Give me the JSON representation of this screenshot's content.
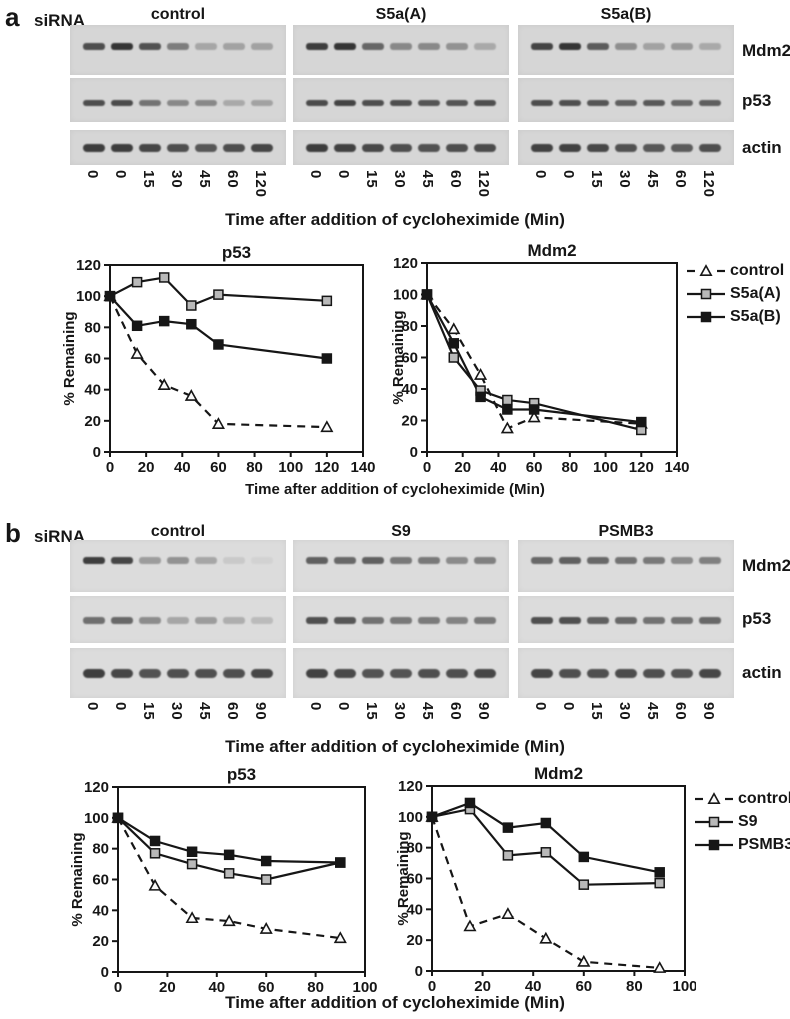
{
  "figure": {
    "background": "#ffffff",
    "text_color": "#161616",
    "blot_bg_a": "#d6d6d6",
    "blot_bg_b": "#dcdcdc",
    "gray_marker": "#b9b9b9"
  },
  "sections": {
    "a": {
      "panel_label": "a",
      "sirna_label": "siRNA",
      "group_headers": [
        "control",
        "S5a(A)",
        "S5a(B)"
      ],
      "row_labels": [
        "Mdm2",
        "p53",
        "actin"
      ],
      "time_labels": [
        "0",
        "0",
        "15",
        "30",
        "45",
        "60",
        "120"
      ],
      "blot_axis_title": "Time after addition of cycloheximide (Min)",
      "chart_xlabel": "Time after addition of cycloheximide (Min)",
      "band_intensities": [
        [
          [
            0.8,
            0.95,
            0.78,
            0.52,
            0.28,
            0.3,
            0.3
          ],
          [
            0.8,
            0.82,
            0.58,
            0.46,
            0.46,
            0.26,
            0.3
          ],
          [
            0.9,
            0.9,
            0.85,
            0.8,
            0.75,
            0.8,
            0.85
          ]
        ],
        [
          [
            0.9,
            0.95,
            0.66,
            0.46,
            0.45,
            0.4,
            0.26
          ],
          [
            0.82,
            0.86,
            0.8,
            0.8,
            0.76,
            0.76,
            0.8
          ],
          [
            0.9,
            0.88,
            0.84,
            0.8,
            0.78,
            0.8,
            0.82
          ]
        ],
        [
          [
            0.86,
            0.95,
            0.72,
            0.42,
            0.3,
            0.36,
            0.26
          ],
          [
            0.8,
            0.8,
            0.76,
            0.7,
            0.74,
            0.66,
            0.7
          ],
          [
            0.88,
            0.88,
            0.84,
            0.78,
            0.74,
            0.72,
            0.8
          ]
        ]
      ]
    },
    "b": {
      "panel_label": "b",
      "sirna_label": "siRNA",
      "group_headers": [
        "control",
        "S9",
        "PSMB3"
      ],
      "row_labels": [
        "Mdm2",
        "p53",
        "actin"
      ],
      "time_labels": [
        "0",
        "0",
        "15",
        "30",
        "45",
        "60",
        "90"
      ],
      "blot_axis_title": "Time after addition of cycloheximide (Min)",
      "chart_xlabel": "Time after addition of cycloheximide (Min)",
      "band_intensities": [
        [
          [
            0.9,
            0.85,
            0.36,
            0.42,
            0.3,
            0.1,
            0.05
          ],
          [
            0.62,
            0.66,
            0.45,
            0.3,
            0.36,
            0.26,
            0.18
          ],
          [
            0.9,
            0.85,
            0.78,
            0.8,
            0.8,
            0.8,
            0.85
          ]
        ],
        [
          [
            0.7,
            0.66,
            0.7,
            0.56,
            0.56,
            0.46,
            0.52
          ],
          [
            0.8,
            0.76,
            0.6,
            0.56,
            0.55,
            0.5,
            0.56
          ],
          [
            0.88,
            0.84,
            0.78,
            0.78,
            0.8,
            0.8,
            0.85
          ]
        ],
        [
          [
            0.66,
            0.7,
            0.66,
            0.6,
            0.56,
            0.46,
            0.52
          ],
          [
            0.8,
            0.8,
            0.7,
            0.66,
            0.6,
            0.6,
            0.66
          ],
          [
            0.86,
            0.8,
            0.8,
            0.82,
            0.8,
            0.78,
            0.85
          ]
        ]
      ]
    }
  },
  "chart_data": [
    {
      "id": "a-p53",
      "type": "line",
      "title": "p53",
      "ylabel": "% Remaining",
      "xlabel": "Time after addition of cycloheximide (Min)",
      "xlim": [
        0,
        140
      ],
      "xticks": [
        0,
        20,
        40,
        60,
        80,
        100,
        120,
        140
      ],
      "ylim": [
        0,
        120
      ],
      "yticks": [
        0,
        20,
        40,
        60,
        80,
        100,
        120
      ],
      "grid": false,
      "x": [
        0,
        15,
        30,
        45,
        60,
        120
      ],
      "series": [
        {
          "name": "control",
          "values": [
            100,
            63,
            43,
            36,
            18,
            16
          ],
          "line": "dashed",
          "marker": "triangle-open"
        },
        {
          "name": "S5a(A)",
          "values": [
            100,
            109,
            112,
            94,
            101,
            97
          ],
          "line": "solid",
          "marker": "square-gray"
        },
        {
          "name": "S5a(B)",
          "values": [
            100,
            81,
            84,
            82,
            69,
            60
          ],
          "line": "solid",
          "marker": "square-black"
        }
      ]
    },
    {
      "id": "a-mdm2",
      "type": "line",
      "title": "Mdm2",
      "ylabel": "% Remaining",
      "xlabel": "Time after addition of cycloheximide (Min)",
      "xlim": [
        0,
        140
      ],
      "xticks": [
        0,
        20,
        40,
        60,
        80,
        100,
        120,
        140
      ],
      "ylim": [
        0,
        120
      ],
      "yticks": [
        0,
        20,
        40,
        60,
        80,
        100,
        120
      ],
      "grid": false,
      "x": [
        0,
        15,
        30,
        45,
        60,
        120
      ],
      "series": [
        {
          "name": "control",
          "values": [
            100,
            78,
            49,
            15,
            22,
            18
          ],
          "line": "dashed",
          "marker": "triangle-open"
        },
        {
          "name": "S5a(A)",
          "values": [
            100,
            60,
            39,
            33,
            31,
            14
          ],
          "line": "solid",
          "marker": "square-gray"
        },
        {
          "name": "S5a(B)",
          "values": [
            100,
            69,
            35,
            27,
            27,
            19
          ],
          "line": "solid",
          "marker": "square-black"
        }
      ]
    },
    {
      "id": "b-p53",
      "type": "line",
      "title": "p53",
      "ylabel": "% Remaining",
      "xlabel": "Time after addition of cycloheximide (Min)",
      "xlim": [
        0,
        100
      ],
      "xticks": [
        0,
        20,
        40,
        60,
        80,
        100
      ],
      "ylim": [
        0,
        120
      ],
      "yticks": [
        0,
        20,
        40,
        60,
        80,
        100,
        120
      ],
      "grid": false,
      "x": [
        0,
        15,
        30,
        45,
        60,
        90
      ],
      "series": [
        {
          "name": "control",
          "values": [
            100,
            56,
            35,
            33,
            28,
            22
          ],
          "line": "dashed",
          "marker": "triangle-open"
        },
        {
          "name": "S9",
          "values": [
            100,
            77,
            70,
            64,
            60,
            71
          ],
          "line": "solid",
          "marker": "square-gray"
        },
        {
          "name": "PSMB3",
          "values": [
            100,
            85,
            78,
            76,
            72,
            71
          ],
          "line": "solid",
          "marker": "square-black"
        }
      ]
    },
    {
      "id": "b-mdm2",
      "type": "line",
      "title": "Mdm2",
      "ylabel": "% Remaining",
      "xlabel": "Time after addition of cycloheximide (Min)",
      "xlim": [
        0,
        100
      ],
      "xticks": [
        0,
        20,
        40,
        60,
        80,
        100
      ],
      "ylim": [
        0,
        120
      ],
      "yticks": [
        0,
        20,
        40,
        60,
        80,
        100,
        120
      ],
      "grid": false,
      "x": [
        0,
        15,
        30,
        45,
        60,
        90
      ],
      "series": [
        {
          "name": "control",
          "values": [
            100,
            29,
            37,
            21,
            6,
            2
          ],
          "line": "dashed",
          "marker": "triangle-open"
        },
        {
          "name": "S9",
          "values": [
            100,
            105,
            75,
            77,
            56,
            57
          ],
          "line": "solid",
          "marker": "square-gray"
        },
        {
          "name": "PSMB3",
          "values": [
            100,
            109,
            93,
            96,
            74,
            64
          ],
          "line": "solid",
          "marker": "square-black"
        }
      ]
    }
  ],
  "legends": {
    "a": {
      "items": [
        {
          "label": "control",
          "marker": "triangle-open",
          "line": "dashed"
        },
        {
          "label": "S5a(A)",
          "marker": "square-gray",
          "line": "solid"
        },
        {
          "label": "S5a(B)",
          "marker": "square-black",
          "line": "solid"
        }
      ]
    },
    "b": {
      "items": [
        {
          "label": "control",
          "marker": "triangle-open",
          "line": "dashed"
        },
        {
          "label": "S9",
          "marker": "square-gray",
          "line": "solid"
        },
        {
          "label": "PSMB3",
          "marker": "square-black",
          "line": "solid"
        }
      ]
    }
  }
}
